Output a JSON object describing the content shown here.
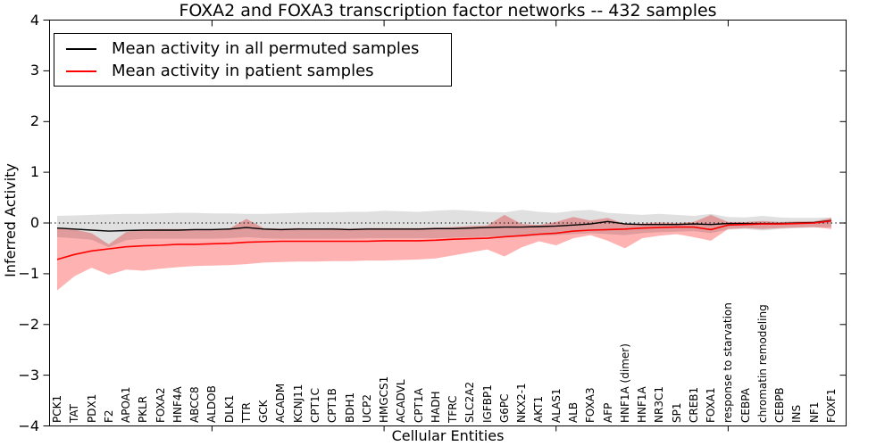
{
  "chart_data": {
    "type": "line",
    "title": "FOXA2 and FOXA3 transcription factor networks -- 432 samples",
    "xlabel": "Cellular Entities",
    "ylabel": "Inferred Activity",
    "ylim": [
      -4,
      4
    ],
    "yticks": [
      4,
      3,
      2,
      1,
      0,
      -1,
      -2,
      -3,
      -4
    ],
    "xtick_indices": [
      9,
      19,
      29,
      39
    ],
    "grid": false,
    "legend_position": "upper left",
    "zero_line": {
      "y": 0,
      "style": "dotted",
      "color": "#151515"
    },
    "frame_color": "#000000",
    "categories": [
      "PCK1",
      "TAT",
      "PDX1",
      "F2",
      "APOA1",
      "PKLR",
      "FOXA2",
      "HNF4A",
      "ABCC8",
      "ALDOB",
      "DLK1",
      "TTR",
      "GCK",
      "ACADM",
      "KCNJ11",
      "CPT1C",
      "CPT1B",
      "BDH1",
      "UCP2",
      "HMGCS1",
      "ACADVL",
      "CPT1A",
      "HADH",
      "TFRC",
      "SLC2A2",
      "IGFBP1",
      "G6PC",
      "NKX2-1",
      "AKT1",
      "ALAS1",
      "ALB",
      "FOXA3",
      "AFP",
      "HNF1A (dimer)",
      "HNF1A",
      "NR3C1",
      "SP1",
      "CREB1",
      "FOXA1",
      "response to starvation",
      "CEBPA",
      "chromatin remodeling",
      "CEBPB",
      "INS",
      "NF1",
      "FOXF1"
    ],
    "series": [
      {
        "name": "Mean activity in all permuted samples",
        "color": "#000000",
        "values": [
          -0.1,
          -0.12,
          -0.14,
          -0.16,
          -0.15,
          -0.14,
          -0.14,
          -0.14,
          -0.13,
          -0.13,
          -0.12,
          -0.09,
          -0.12,
          -0.13,
          -0.12,
          -0.12,
          -0.12,
          -0.13,
          -0.12,
          -0.12,
          -0.12,
          -0.12,
          -0.11,
          -0.11,
          -0.1,
          -0.09,
          -0.08,
          -0.08,
          -0.07,
          -0.06,
          -0.04,
          -0.02,
          0.03,
          -0.02,
          -0.03,
          -0.03,
          -0.03,
          -0.02,
          -0.03,
          -0.01,
          -0.01,
          -0.01,
          -0.01,
          0.0,
          0.01,
          0.05
        ],
        "band": {
          "fill": "rgba(0,0,0,0.12)",
          "upper": [
            0.14,
            0.15,
            0.16,
            0.17,
            0.18,
            0.18,
            0.19,
            0.2,
            0.2,
            0.19,
            0.19,
            0.18,
            0.18,
            0.19,
            0.2,
            0.21,
            0.21,
            0.22,
            0.22,
            0.24,
            0.23,
            0.22,
            0.24,
            0.26,
            0.24,
            0.22,
            0.21,
            0.26,
            0.22,
            0.2,
            0.24,
            0.26,
            0.2,
            0.18,
            0.16,
            0.18,
            0.16,
            0.14,
            0.18,
            0.12,
            0.11,
            0.14,
            0.11,
            0.1,
            0.1,
            0.11
          ],
          "lower": [
            -0.28,
            -0.3,
            -0.33,
            -0.48,
            -0.34,
            -0.31,
            -0.31,
            -0.31,
            -0.31,
            -0.31,
            -0.3,
            -0.28,
            -0.3,
            -0.31,
            -0.31,
            -0.31,
            -0.31,
            -0.31,
            -0.3,
            -0.3,
            -0.3,
            -0.3,
            -0.3,
            -0.29,
            -0.28,
            -0.27,
            -0.26,
            -0.27,
            -0.25,
            -0.24,
            -0.22,
            -0.2,
            -0.22,
            -0.24,
            -0.2,
            -0.18,
            -0.17,
            -0.16,
            -0.2,
            -0.13,
            -0.12,
            -0.15,
            -0.12,
            -0.1,
            -0.09,
            -0.08
          ]
        }
      },
      {
        "name": "Mean activity in patient samples",
        "color": "#ff0000",
        "values": [
          -0.72,
          -0.62,
          -0.55,
          -0.51,
          -0.47,
          -0.45,
          -0.44,
          -0.42,
          -0.42,
          -0.41,
          -0.4,
          -0.38,
          -0.37,
          -0.36,
          -0.36,
          -0.36,
          -0.36,
          -0.36,
          -0.36,
          -0.35,
          -0.35,
          -0.35,
          -0.34,
          -0.32,
          -0.31,
          -0.3,
          -0.27,
          -0.25,
          -0.22,
          -0.2,
          -0.16,
          -0.14,
          -0.13,
          -0.12,
          -0.1,
          -0.09,
          -0.08,
          -0.08,
          -0.13,
          -0.04,
          -0.03,
          -0.02,
          -0.02,
          -0.01,
          0.0,
          0.04
        ],
        "band": {
          "fill": "rgba(255,0,0,0.30)",
          "upper": [
            -0.1,
            -0.13,
            -0.2,
            -0.42,
            -0.18,
            -0.13,
            -0.12,
            -0.12,
            -0.12,
            -0.12,
            -0.11,
            0.08,
            -0.1,
            -0.11,
            -0.1,
            -0.11,
            -0.1,
            -0.11,
            -0.1,
            -0.1,
            -0.1,
            -0.1,
            -0.09,
            -0.08,
            -0.06,
            -0.05,
            0.16,
            -0.02,
            -0.04,
            0.02,
            0.12,
            0.05,
            0.1,
            -0.02,
            -0.01,
            0.01,
            0.0,
            0.02,
            0.16,
            0.02,
            0.02,
            0.04,
            0.02,
            0.03,
            0.03,
            0.1
          ],
          "lower": [
            -1.33,
            -1.05,
            -0.88,
            -1.02,
            -0.92,
            -0.94,
            -0.9,
            -0.87,
            -0.85,
            -0.84,
            -0.83,
            -0.81,
            -0.78,
            -0.77,
            -0.76,
            -0.76,
            -0.75,
            -0.75,
            -0.74,
            -0.74,
            -0.73,
            -0.72,
            -0.7,
            -0.64,
            -0.58,
            -0.52,
            -0.66,
            -0.48,
            -0.36,
            -0.44,
            -0.3,
            -0.24,
            -0.35,
            -0.5,
            -0.3,
            -0.25,
            -0.22,
            -0.28,
            -0.35,
            -0.12,
            -0.1,
            -0.12,
            -0.1,
            -0.09,
            -0.08,
            -0.12
          ]
        }
      }
    ]
  }
}
